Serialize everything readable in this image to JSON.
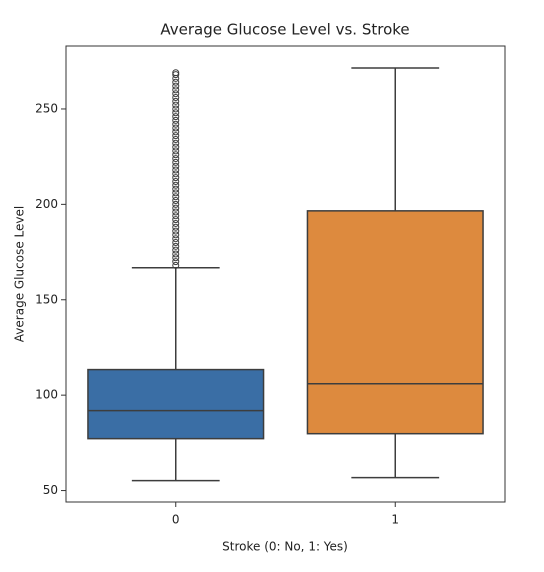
{
  "chart_data": {
    "type": "box",
    "title": "Average Glucose Level vs. Stroke",
    "xlabel": "Stroke (0: No, 1: Yes)",
    "ylabel": "Average Glucose Level",
    "categories": [
      "0",
      "1"
    ],
    "boxes": [
      {
        "whislo": 55.2,
        "q1": 77.2,
        "med": 91.9,
        "q3": 113.4,
        "whishi": 166.8,
        "color": "#3a6ea5",
        "fliers": [
          168,
          170,
          172,
          174,
          176,
          178,
          180,
          182,
          184,
          186,
          188,
          190,
          192,
          194,
          196,
          198,
          200,
          202,
          204,
          206,
          208,
          210,
          212,
          214,
          216,
          218,
          220,
          222,
          224,
          226,
          228,
          230,
          232,
          234,
          236,
          238,
          240,
          242,
          244,
          246,
          248,
          250,
          252,
          254,
          256,
          258,
          260,
          262,
          264,
          266,
          268,
          269
        ]
      },
      {
        "whislo": 56.8,
        "q1": 79.8,
        "med": 106,
        "q3": 196.6,
        "whishi": 271.5,
        "color": "#dd8a3e",
        "fliers": []
      }
    ],
    "ylim": [
      44,
      283
    ],
    "yticks": [
      50,
      100,
      150,
      200,
      250
    ]
  }
}
